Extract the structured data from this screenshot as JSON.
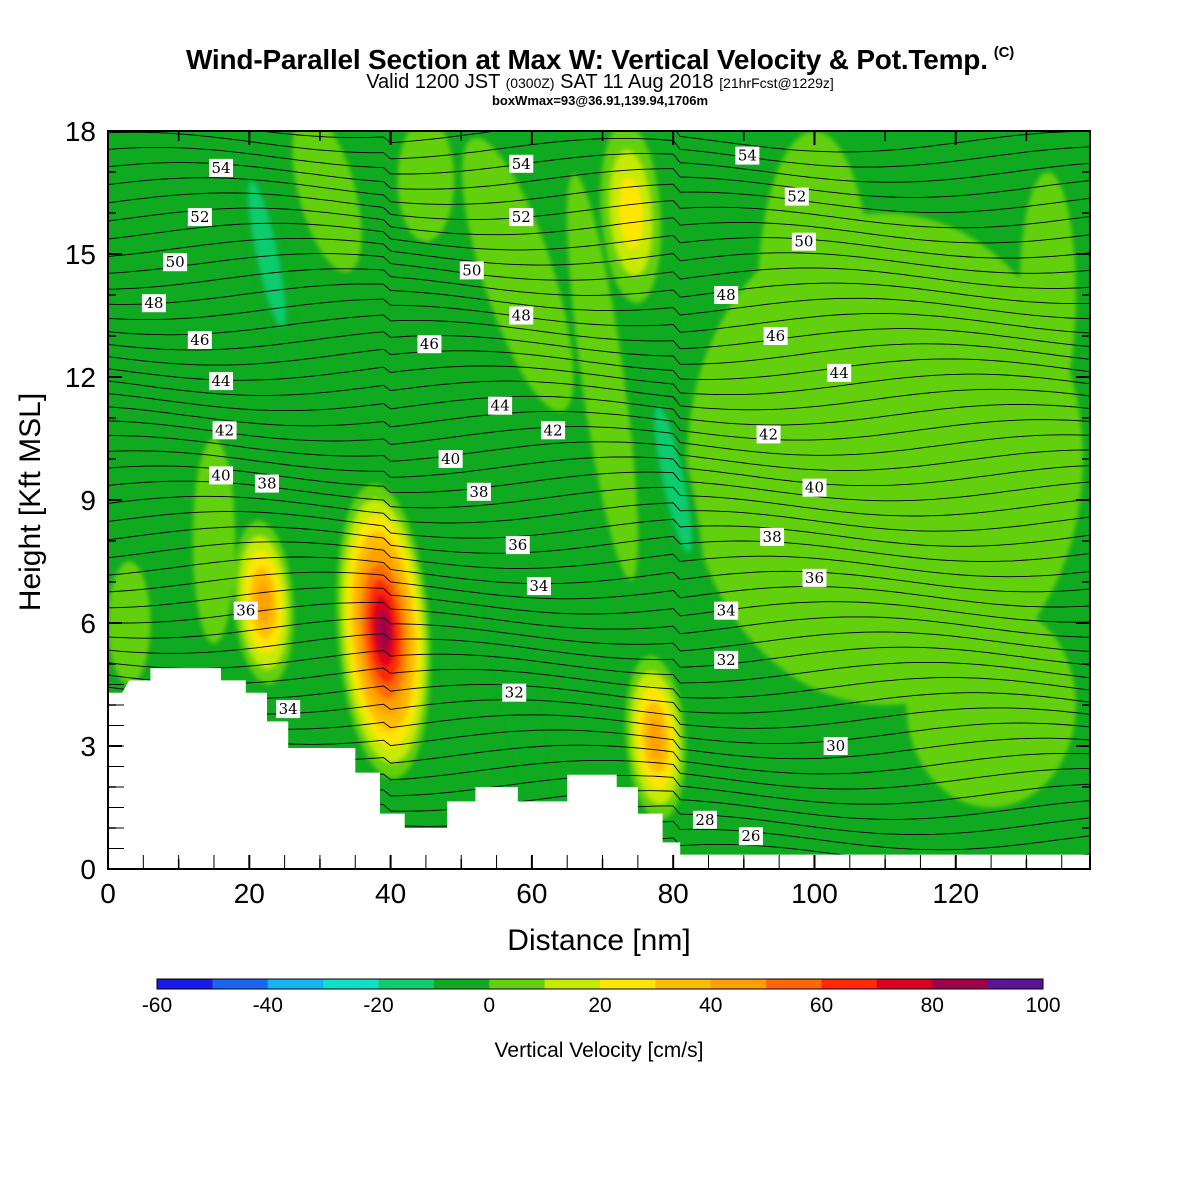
{
  "title": {
    "main": "Wind-Parallel Section at Max W: Vertical Velocity & Pot.Temp.",
    "copyright": "(C)",
    "sub_prefix": "Valid 1200 JST",
    "sub_utc": "(0300Z)",
    "sub_date": "SAT 11 Aug 2018",
    "sub_fcst": "[21hrFcst@1229z]",
    "box": "boxWmax=93@36.91,139.94,1706m"
  },
  "chart_data": {
    "type": "heatmap",
    "xlabel": "Distance [nm]",
    "ylabel": "Height [Kft MSL]",
    "xlim": [
      0,
      139
    ],
    "ylim": [
      0,
      18
    ],
    "xticks": [
      0,
      20,
      40,
      60,
      80,
      100,
      120
    ],
    "yticks": [
      0,
      3,
      6,
      9,
      12,
      15,
      18
    ],
    "colorbar": {
      "label": "Vertical Velocity [cm/s]",
      "range": [
        -60,
        100
      ],
      "ticks": [
        -60,
        -40,
        -20,
        0,
        20,
        40,
        60,
        80,
        100
      ],
      "colors": [
        "#1b1be6",
        "#1a66f0",
        "#15b4f5",
        "#10e0c8",
        "#10cc6e",
        "#10aa20",
        "#64d00a",
        "#c6ea00",
        "#ffe600",
        "#ffbc00",
        "#ffa000",
        "#ff6a00",
        "#ff2a00",
        "#dc001e",
        "#a0004a",
        "#5a1496"
      ]
    },
    "velocity_maxima": [
      {
        "x": 39,
        "z": 5.8,
        "w": 93
      },
      {
        "x": 22,
        "z": 6.5,
        "w": 45
      },
      {
        "x": 77.5,
        "z": 3.2,
        "w": 48
      },
      {
        "x": 74,
        "z": 16,
        "w": 30
      }
    ],
    "velocity_minima": [
      {
        "x": 80,
        "z": 9.5,
        "w": -22
      },
      {
        "x": 22.5,
        "z": 15,
        "w": -22
      },
      {
        "x": 58,
        "z": 4.2,
        "w": -10
      }
    ],
    "terrain": [
      [
        0,
        4.3
      ],
      [
        2,
        4.3
      ],
      [
        3,
        4.6
      ],
      [
        6,
        4.6
      ],
      [
        6,
        4.9
      ],
      [
        16,
        4.9
      ],
      [
        16,
        4.6
      ],
      [
        19.5,
        4.6
      ],
      [
        19.5,
        4.3
      ],
      [
        22.5,
        4.3
      ],
      [
        22.5,
        3.6
      ],
      [
        25.5,
        3.6
      ],
      [
        25.5,
        2.95
      ],
      [
        35,
        2.95
      ],
      [
        35,
        2.35
      ],
      [
        38.5,
        2.35
      ],
      [
        38.5,
        1.35
      ],
      [
        42,
        1.35
      ],
      [
        42,
        1.0
      ],
      [
        48,
        1.0
      ],
      [
        48,
        1.65
      ],
      [
        52,
        1.65
      ],
      [
        52,
        2.0
      ],
      [
        58,
        2.0
      ],
      [
        58,
        1.65
      ],
      [
        65,
        1.65
      ],
      [
        65,
        2.3
      ],
      [
        72,
        2.3
      ],
      [
        72,
        2.0
      ],
      [
        75,
        2.0
      ],
      [
        75,
        1.35
      ],
      [
        78.5,
        1.35
      ],
      [
        78.5,
        0.65
      ],
      [
        81,
        0.65
      ],
      [
        81,
        0.35
      ],
      [
        139,
        0.35
      ]
    ],
    "theta_levels": [
      26,
      28,
      30,
      32,
      34,
      36,
      38,
      40,
      42,
      44,
      46,
      48,
      50,
      52,
      54
    ],
    "contour_labels": [
      {
        "text": "54",
        "x": 16,
        "z": 17.1
      },
      {
        "text": "52",
        "x": 13,
        "z": 15.9
      },
      {
        "text": "50",
        "x": 9.5,
        "z": 14.8
      },
      {
        "text": "48",
        "x": 6.5,
        "z": 13.8
      },
      {
        "text": "46",
        "x": 13,
        "z": 12.9
      },
      {
        "text": "44",
        "x": 16,
        "z": 11.9
      },
      {
        "text": "42",
        "x": 16.5,
        "z": 10.7
      },
      {
        "text": "40",
        "x": 16,
        "z": 9.6
      },
      {
        "text": "38",
        "x": 22.5,
        "z": 9.4
      },
      {
        "text": "36",
        "x": 19.5,
        "z": 6.3
      },
      {
        "text": "34",
        "x": 25.5,
        "z": 3.9
      },
      {
        "text": "46",
        "x": 45.5,
        "z": 12.8
      },
      {
        "text": "50",
        "x": 51.5,
        "z": 14.6
      },
      {
        "text": "44",
        "x": 55.5,
        "z": 11.3
      },
      {
        "text": "40",
        "x": 48.5,
        "z": 10.0
      },
      {
        "text": "38",
        "x": 52.5,
        "z": 9.2
      },
      {
        "text": "36",
        "x": 58,
        "z": 7.9
      },
      {
        "text": "34",
        "x": 61,
        "z": 6.9
      },
      {
        "text": "32",
        "x": 57.5,
        "z": 4.3
      },
      {
        "text": "54",
        "x": 58.5,
        "z": 17.2
      },
      {
        "text": "52",
        "x": 58.5,
        "z": 15.9
      },
      {
        "text": "48",
        "x": 58.5,
        "z": 13.5
      },
      {
        "text": "42",
        "x": 63,
        "z": 10.7
      },
      {
        "text": "54",
        "x": 90.5,
        "z": 17.4
      },
      {
        "text": "52",
        "x": 97.5,
        "z": 16.4
      },
      {
        "text": "50",
        "x": 98.5,
        "z": 15.3
      },
      {
        "text": "48",
        "x": 87.5,
        "z": 14.0
      },
      {
        "text": "46",
        "x": 94.5,
        "z": 13.0
      },
      {
        "text": "44",
        "x": 103.5,
        "z": 12.1
      },
      {
        "text": "42",
        "x": 93.5,
        "z": 10.6
      },
      {
        "text": "40",
        "x": 100,
        "z": 9.3
      },
      {
        "text": "38",
        "x": 94,
        "z": 8.1
      },
      {
        "text": "36",
        "x": 100,
        "z": 7.1
      },
      {
        "text": "34",
        "x": 87.5,
        "z": 6.3
      },
      {
        "text": "32",
        "x": 87.5,
        "z": 5.1
      },
      {
        "text": "30",
        "x": 103,
        "z": 3.0
      },
      {
        "text": "28",
        "x": 84.5,
        "z": 1.2
      },
      {
        "text": "26",
        "x": 91,
        "z": 0.8
      }
    ]
  }
}
